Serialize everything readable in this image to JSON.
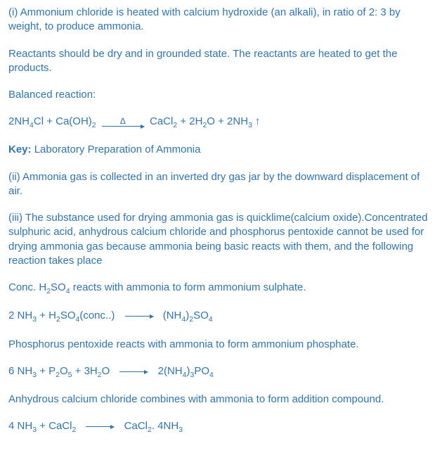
{
  "p1": "(i) Ammonium chloride is heated with calcium hydroxide (an alkali), in ratio of 2: 3 by weight, to produce ammonia.",
  "p2": "Reactants should be dry and in grounded state. The reactants are heated to get the products.",
  "p3": "Balanced reaction:",
  "eq1": {
    "left": "2NH",
    "s1": "4",
    "mid1": "Cl + Ca(OH)",
    "s2": "2",
    "delta": "Δ",
    "right1": "CaCl",
    "s3": "2",
    "right2": " + 2H",
    "s4": "2",
    "right3": "O + 2NH",
    "s5": "3",
    "up": "↑"
  },
  "key_label": "Key: ",
  "key_text": "Laboratory Preparation of Ammonia",
  "p4": "(ii)  Ammonia gas is collected in an inverted dry gas  jar by the downward displacement of air.",
  "p5": "(iii) The substance used for drying ammonia gas is quicklime(calcium oxide).Concentrated sulphuric acid, anhydrous calcium chloride and phosphorus pentoxide cannot be used for drying ammonia gas because ammonia being basic reacts with them, and the following reaction takes place",
  "p6a": "Conc. H",
  "p6s1": "2",
  "p6b": "SO",
  "p6s2": "4",
  "p6c": " reacts with ammonia to form ammonium sulphate.",
  "eq2": {
    "l1": "2 NH",
    "s1": "3",
    "l2": " + H",
    "s2": "2",
    "l3": "SO",
    "s3": "4",
    "l4": "(conc..)",
    "r1": "(NH",
    "s4": "4",
    "r2": ")",
    "s5": "2",
    "r3": "SO",
    "s6": "4"
  },
  "p7": "Phosphorus pentoxide reacts with ammonia to form ammonium phosphate.",
  "eq3": {
    "l1": "6 NH",
    "s1": "3",
    "l2": " + P",
    "s2": "2",
    "l3": "O",
    "s3": "5",
    "l4": " + 3H",
    "s4": "2",
    "l5": "O",
    "r1": "2(NH",
    "s5": "4",
    "r2": ")",
    "s6": "3",
    "r3": "PO",
    "s7": "4"
  },
  "p8": "Anhydrous calcium chloride combines with ammonia to form addition compound.",
  "eq4": {
    "l1": "4 NH",
    "s1": "3",
    "l2": " + CaCl",
    "s2": "2",
    "r1": "CaCl",
    "s3": "2",
    "r2": ". 4NH",
    "s4": "3"
  }
}
